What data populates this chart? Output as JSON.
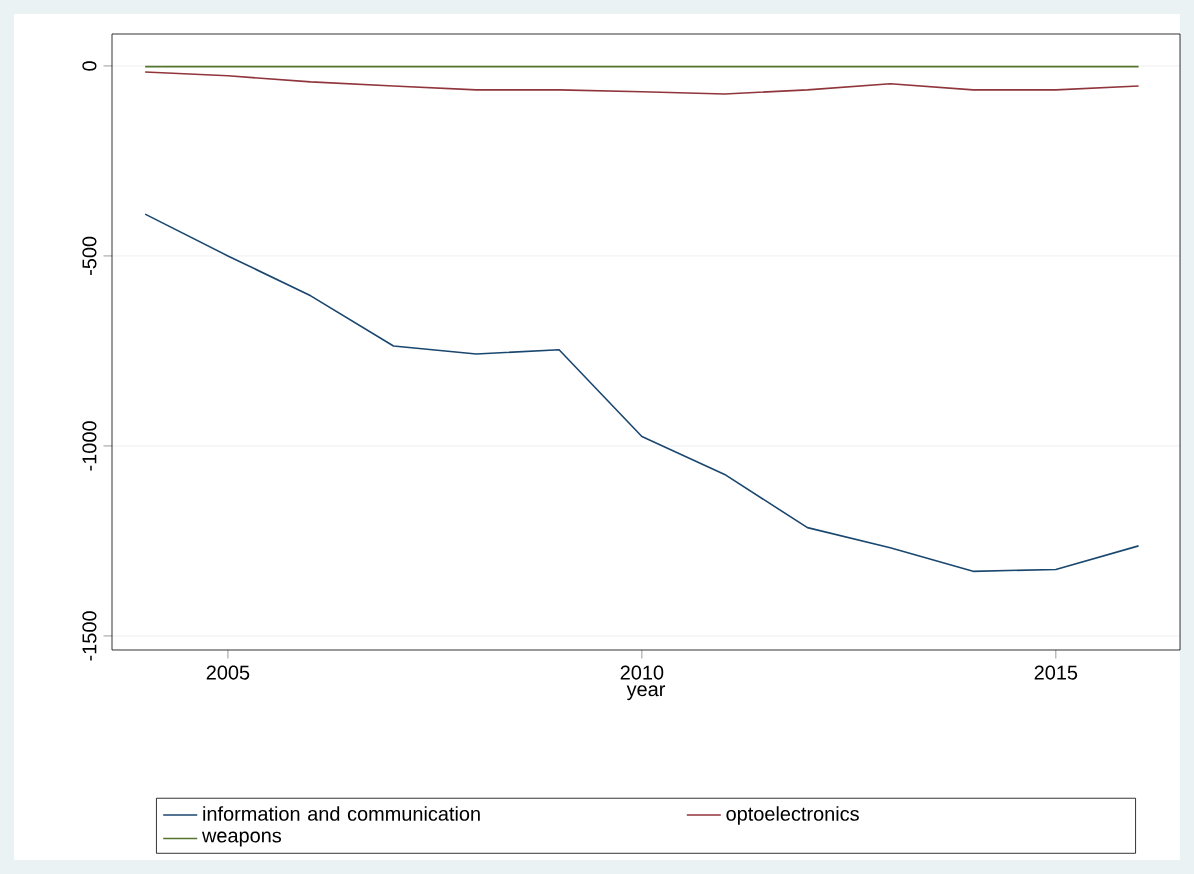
{
  "chart_data": {
    "type": "line",
    "xlabel": "year",
    "x": [
      2004,
      2005,
      2006,
      2007,
      2008,
      2009,
      2010,
      2011,
      2012,
      2013,
      2014,
      2015,
      2016
    ],
    "series": [
      {
        "name": "information and communication",
        "color": "#1a476f",
        "values": [
          -390,
          -500,
          -605,
          -737,
          -758,
          -747,
          -975,
          -1075,
          -1215,
          -1268,
          -1330,
          -1325,
          -1263
        ]
      },
      {
        "name": "optoelectronics",
        "color": "#90353b",
        "values": [
          -16,
          -26,
          -42,
          -53,
          -63,
          -63,
          -68,
          -74,
          -63,
          -47,
          -63,
          -63,
          -53
        ]
      },
      {
        "name": "weapons",
        "color": "#55752f",
        "values": [
          -2,
          -2,
          -2,
          -2,
          -2,
          -2,
          -2,
          -2,
          -2,
          -2,
          -2,
          -2,
          -2
        ]
      }
    ],
    "xlim": [
      2003.6,
      2016.5
    ],
    "ylim": [
      -1537,
      84
    ],
    "xticks": [
      2005,
      2010,
      2015
    ],
    "yticks": [
      -1500,
      -1000,
      -500,
      0
    ],
    "grid": "y",
    "legend": "bottom",
    "marker": "none",
    "line_style": "solid"
  }
}
